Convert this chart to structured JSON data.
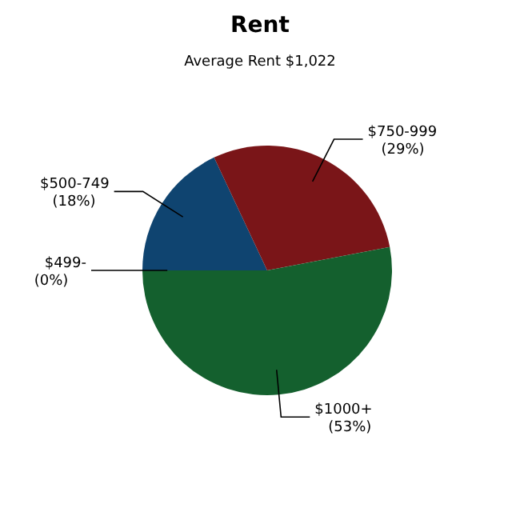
{
  "chart_data": {
    "type": "pie",
    "title": "Rent",
    "subtitle": "Average Rent  $1,022",
    "categories": [
      "$499-",
      "$500-749",
      "$750-999",
      "$1000+"
    ],
    "values": [
      0,
      18,
      29,
      53
    ],
    "value_labels": [
      "(0%)",
      "(18%)",
      "(29%)",
      "(53%)"
    ],
    "colors": [
      "#1a6b3a",
      "#0f4470",
      "#7a1518",
      "#14602e"
    ],
    "legend": false
  }
}
